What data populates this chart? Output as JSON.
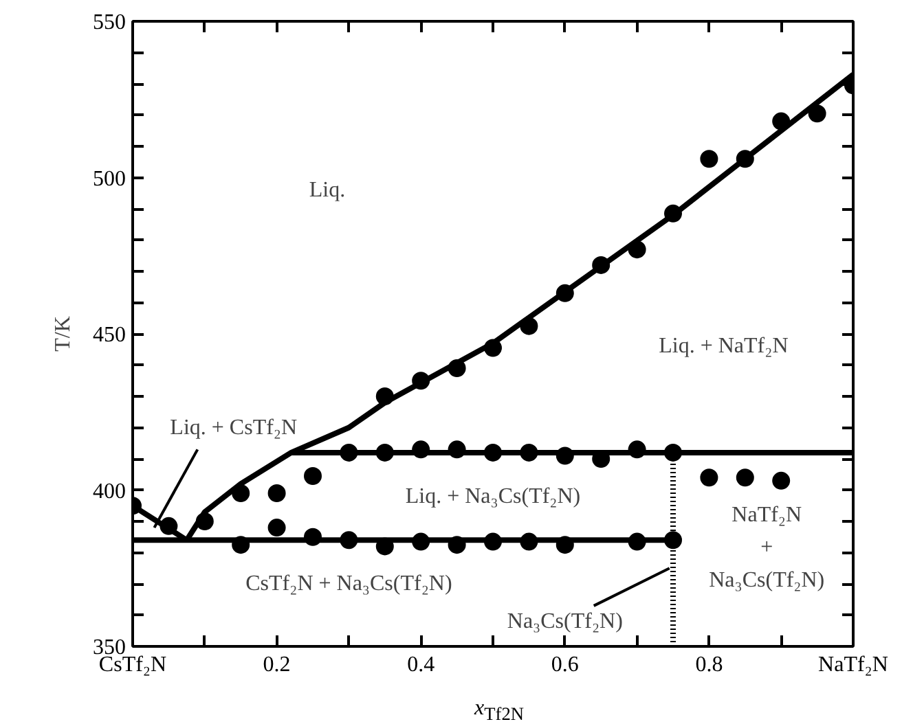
{
  "chart_data": {
    "type": "scatter",
    "xlabel": "x$_{Tf2N}$",
    "ylabel": "T/K",
    "xlim": [
      0,
      1
    ],
    "ylim": [
      350,
      550
    ],
    "xticks": [
      {
        "value": 0,
        "label": "CsTf₂N"
      },
      {
        "value": 0.1,
        "label": null
      },
      0.2,
      {
        "value": 0.3,
        "label": null
      },
      0.4,
      {
        "value": 0.5,
        "label": null
      },
      0.6,
      {
        "value": 0.7,
        "label": null
      },
      0.8,
      {
        "value": 0.9,
        "label": null
      },
      {
        "value": 1,
        "label": "NaTf₂N"
      }
    ],
    "yticks": [
      350,
      {
        "value": 360,
        "label": null
      },
      {
        "value": 370,
        "label": null
      },
      {
        "value": 380,
        "label": null
      },
      {
        "value": 390,
        "label": null
      },
      400,
      {
        "value": 410,
        "label": null
      },
      {
        "value": 420,
        "label": null
      },
      {
        "value": 430,
        "label": null
      },
      {
        "value": 440,
        "label": null
      },
      450,
      {
        "value": 460,
        "label": null
      },
      {
        "value": 470,
        "label": null
      },
      {
        "value": 480,
        "label": null
      },
      {
        "value": 490,
        "label": null
      },
      500,
      {
        "value": 510,
        "label": null
      },
      {
        "value": 520,
        "label": null
      },
      {
        "value": 530,
        "label": null
      },
      {
        "value": 540,
        "label": null
      },
      550
    ],
    "grid": false,
    "marker": "circle",
    "series": [
      {
        "color": "#000000",
        "x": [
          0,
          0.05,
          0.1,
          0.15,
          0.2,
          0.25,
          0.35,
          0.4,
          0.45,
          0.5,
          0.55,
          0.6,
          0.65,
          0.7,
          0.75,
          0.8,
          0.85,
          0.9,
          0.95,
          1.0
        ],
        "values": [
          395,
          388.5,
          390,
          399,
          399,
          404.5,
          430,
          435,
          439,
          445.5,
          452.5,
          463,
          472,
          477,
          488.5,
          506,
          506,
          518,
          520.5,
          529.5
        ]
      },
      {
        "color": "#000000",
        "x": [
          0.15,
          0.2,
          0.25,
          0.3,
          0.35,
          0.4,
          0.45,
          0.5,
          0.55,
          0.6,
          0.7,
          0.75
        ],
        "values": [
          382.5,
          388,
          385,
          384,
          382,
          383.5,
          382.5,
          383.5,
          383.5,
          382.5,
          383.5,
          384
        ]
      },
      {
        "color": "#000000",
        "x": [
          0.3,
          0.35,
          0.4,
          0.45,
          0.5,
          0.55,
          0.6,
          0.65,
          0.7,
          0.75,
          0.8,
          0.85,
          0.9
        ],
        "values": [
          412,
          412,
          413,
          413,
          412,
          412,
          411,
          410,
          413,
          412,
          404,
          404,
          403
        ]
      },
      {
        "type": "line",
        "color": "#000000",
        "marker": "none",
        "x": [
          0,
          0.075
        ],
        "values": [
          395,
          384
        ]
      },
      {
        "type": "line",
        "color": "#000000",
        "marker": "none",
        "x": [
          0.075,
          0.1,
          0.15,
          0.22,
          0.3,
          0.35,
          0.5,
          0.75,
          1.0
        ],
        "values": [
          384,
          393,
          402,
          412,
          420,
          428,
          447,
          488,
          533
        ]
      },
      {
        "type": "line",
        "color": "#000000",
        "marker": "none",
        "x": [
          0,
          0.75
        ],
        "values": [
          384,
          384
        ]
      },
      {
        "type": "line",
        "color": "#000000",
        "marker": "none",
        "x": [
          0.22,
          1.0
        ],
        "values": [
          412,
          412
        ]
      },
      {
        "type": "line",
        "color": "#000000",
        "marker": "none",
        "line_style": "dotted",
        "x": [
          0.75,
          0.75
        ],
        "values": [
          350,
          412
        ]
      }
    ],
    "annotations": [
      "Liq.",
      "Liq. + NaTf₂N",
      {
        "text": "Liq. + CsTf₂N",
        "x": 0.03,
        "y": 388
      },
      "Liq. + Na₃Cs(Tf₂N)",
      "CsTf₂N + Na₃Cs(Tf₂N)",
      {
        "text": "Na₃Cs(Tf₂N)",
        "x": 0.745,
        "y": 375
      },
      "NaTf₂N",
      "+",
      "Na₃Cs(Tf₂N)"
    ]
  }
}
